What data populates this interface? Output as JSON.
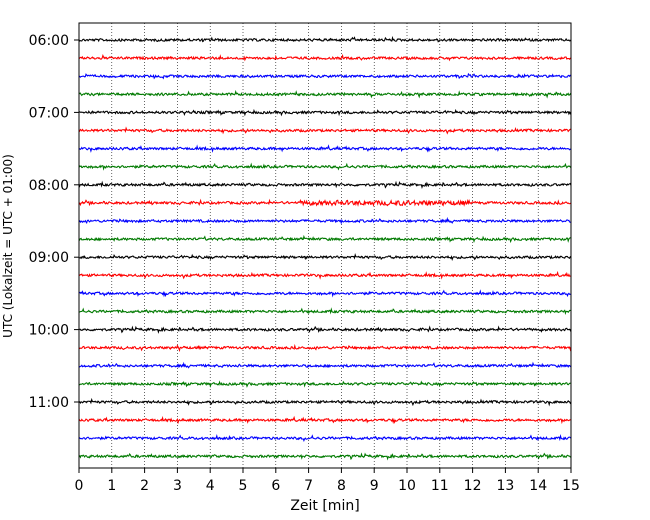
{
  "chart_data": {
    "type": "line",
    "subtype": "helicorder",
    "title": "",
    "xlabel": "Zeit  [min]",
    "ylabel": "UTC (Lokalzeit = UTC + 01:00)",
    "xlim": [
      0,
      15
    ],
    "x_ticks": [
      0,
      1,
      2,
      3,
      4,
      5,
      6,
      7,
      8,
      9,
      10,
      11,
      12,
      13,
      14,
      15
    ],
    "x_tick_labels": [
      "0",
      "1",
      "2",
      "3",
      "4",
      "5",
      "6",
      "7",
      "8",
      "9",
      "10",
      "11",
      "12",
      "13",
      "14",
      "15"
    ],
    "y_tick_labels": [
      "06:00",
      "07:00",
      "08:00",
      "09:00",
      "10:00",
      "11:00"
    ],
    "grid": "vertical dotted",
    "trace_colors": [
      "#000000",
      "#ff0000",
      "#0000ff",
      "#007a00"
    ],
    "trace_start_times": [
      "06:00",
      "06:15",
      "06:30",
      "06:45",
      "07:00",
      "07:15",
      "07:30",
      "07:45",
      "08:00",
      "08:15",
      "08:30",
      "08:45",
      "09:00",
      "09:15",
      "09:30",
      "09:45",
      "10:00",
      "10:15",
      "10:30",
      "10:45",
      "11:00",
      "11:15",
      "11:30",
      "11:45"
    ],
    "minutes_per_trace": 15
  }
}
